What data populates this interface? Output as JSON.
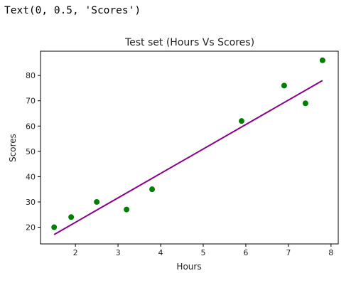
{
  "output_text": "Text(0, 0.5, 'Scores')",
  "chart_data": {
    "type": "scatter",
    "title": "Test set (Hours Vs Scores)",
    "xlabel": "Hours",
    "ylabel": "Scores",
    "xlim": [
      1.18,
      8.17
    ],
    "ylim": [
      13.4,
      89.6
    ],
    "xticks": [
      2,
      3,
      4,
      5,
      6,
      7,
      8
    ],
    "yticks": [
      20,
      30,
      40,
      50,
      60,
      70,
      80
    ],
    "grid": false,
    "series": [
      {
        "kind": "scatter",
        "color": "#008000",
        "x": [
          1.5,
          1.9,
          2.5,
          3.2,
          3.8,
          5.9,
          6.9,
          7.4,
          7.8
        ],
        "y": [
          20,
          24,
          30,
          27,
          35,
          62,
          76,
          69,
          86
        ]
      },
      {
        "kind": "line",
        "color": "#8b008b",
        "x": [
          1.5,
          7.8
        ],
        "y": [
          17.1,
          78.0
        ]
      }
    ]
  }
}
